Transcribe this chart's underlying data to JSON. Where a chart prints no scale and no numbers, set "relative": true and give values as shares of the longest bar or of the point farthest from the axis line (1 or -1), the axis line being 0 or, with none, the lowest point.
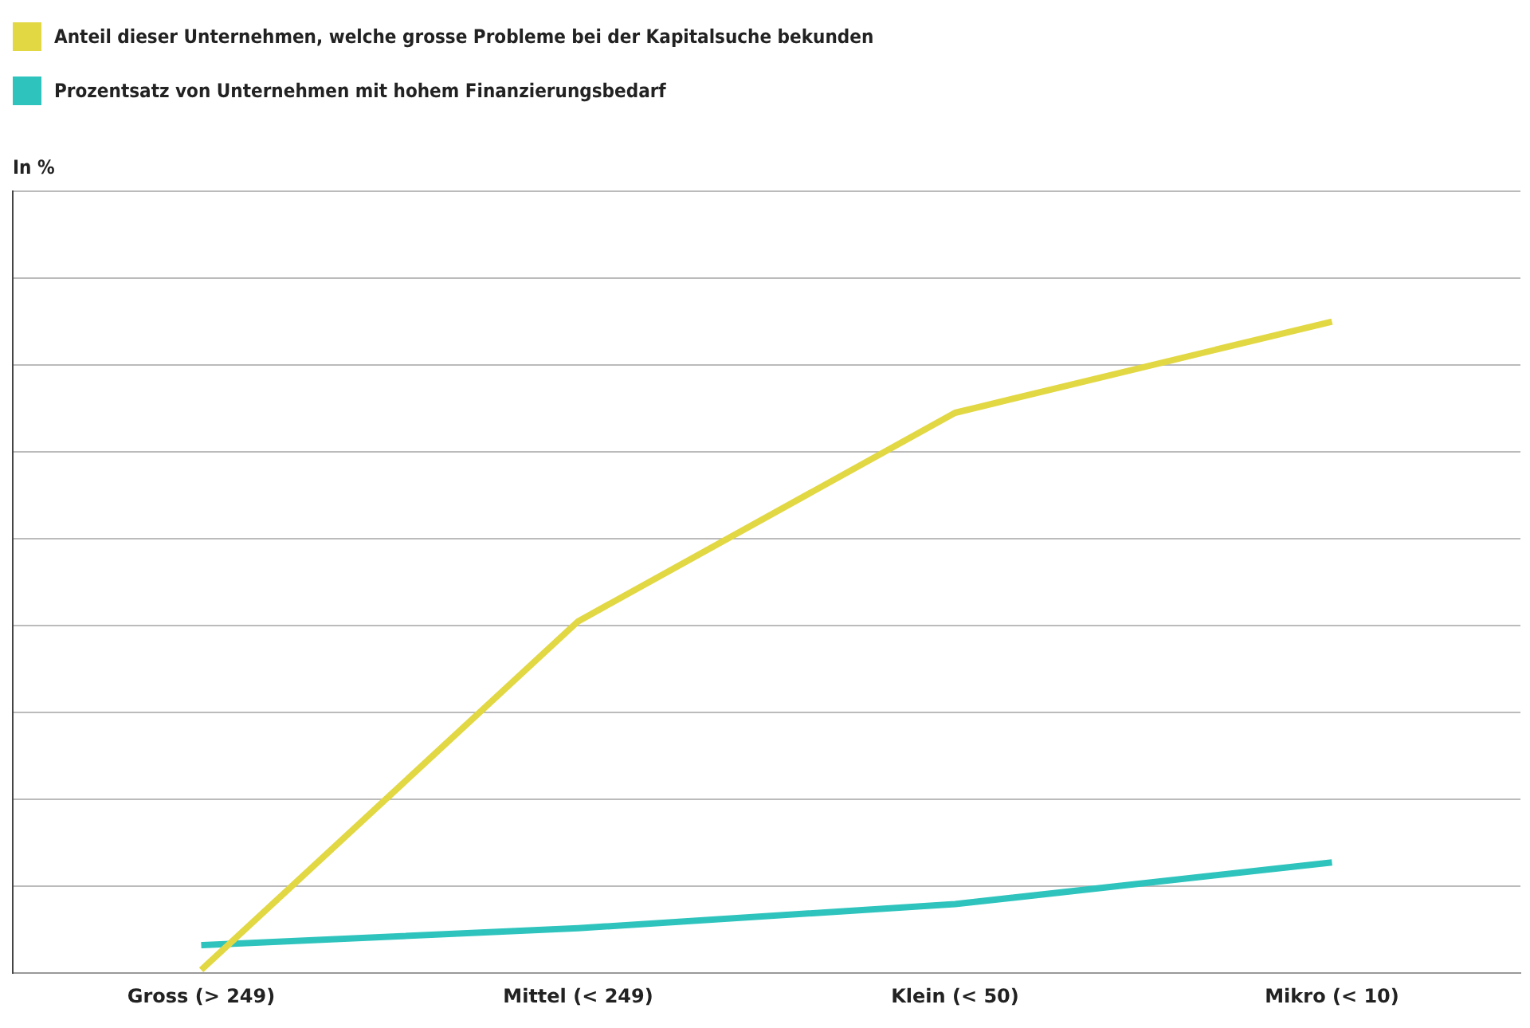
{
  "chart_data": {
    "type": "line",
    "annotations": [
      "In %"
    ],
    "categories": [
      "Gross (> 249)",
      "Mittel (< 249)",
      "Klein (< 50)",
      "Mikro (< 10)"
    ],
    "relative": true,
    "grid": "y",
    "legend": "top left",
    "marker": "none",
    "line_style": "solid",
    "series": [
      {
        "name": "Anteil dieser Unternehmen, welche grosse Probleme bei der Kapitalsuche bekunden",
        "color": "#e2d843",
        "values": [
          0.005,
          0.54,
          0.86,
          1
        ]
      },
      {
        "name": "Prozentsatz von Unternehmen mit hohem Finanzierungsbedarf",
        "color": "#2ec4bd",
        "values": [
          0.043,
          0.069,
          0.106,
          0.17
        ]
      }
    ]
  }
}
